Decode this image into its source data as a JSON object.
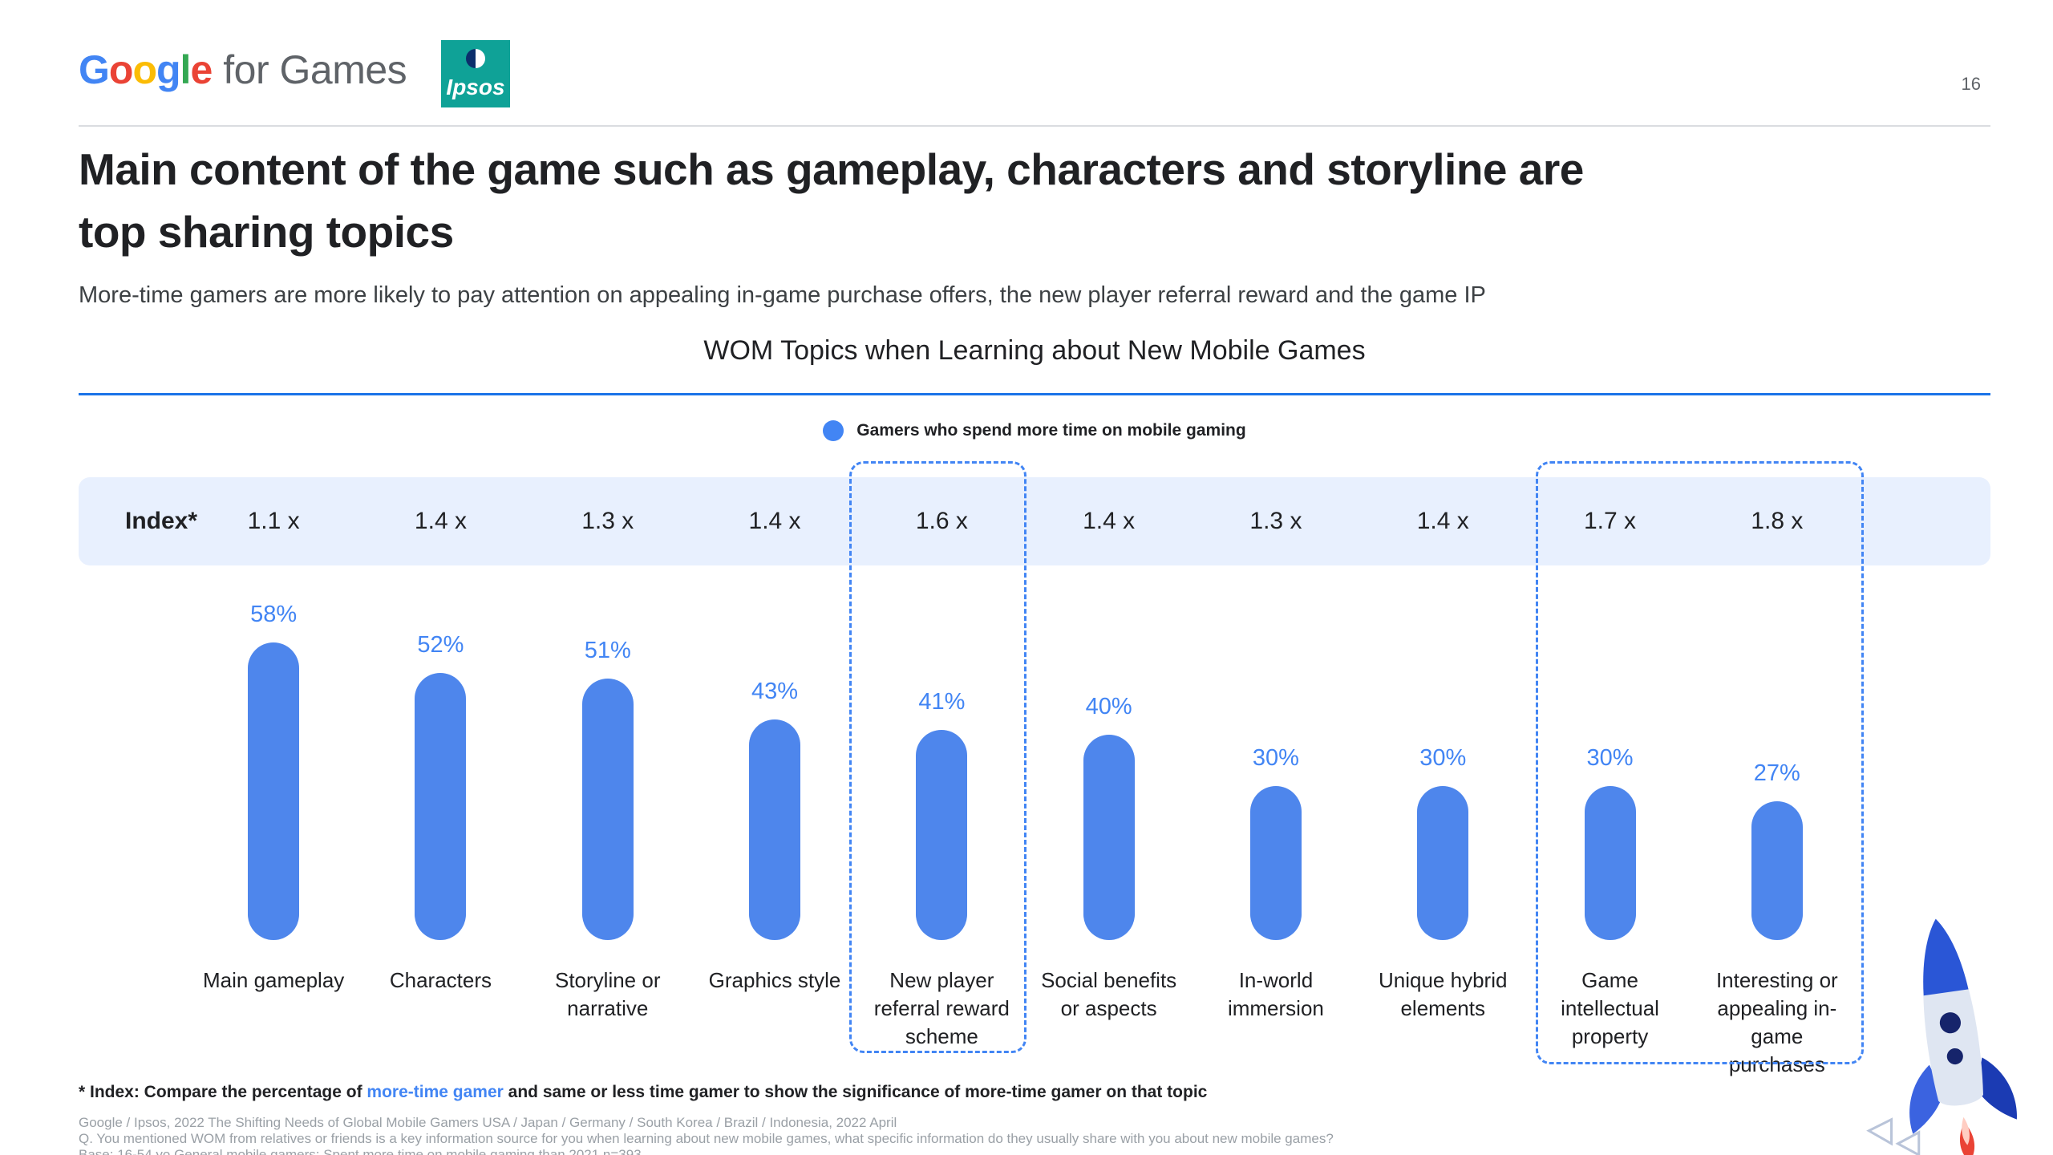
{
  "header": {
    "google_logo": {
      "letters": [
        "G",
        "o",
        "o",
        "g",
        "l",
        "e"
      ],
      "suffix": "for Games"
    },
    "ipsos_logo": "Ipsos",
    "page_number": "16"
  },
  "title": "Main content of the game such as gameplay, characters and storyline are top sharing topics",
  "subtitle": "More-time gamers are more likely to pay attention on appealing in-game purchase offers, the new player referral reward and the game IP",
  "chart_data": {
    "type": "bar",
    "title": "WOM Topics when Learning about New Mobile Games",
    "legend": [
      {
        "label": "Gamers who spend more time on mobile gaming",
        "color": "#4285f4"
      }
    ],
    "index_label": "Index*",
    "index_values": [
      "1.1 x",
      "1.4 x",
      "1.3 x",
      "1.4 x",
      "1.6 x",
      "1.4 x",
      "1.3 x",
      "1.4 x",
      "1.7 x",
      "1.8 x"
    ],
    "categories": [
      "Main gameplay",
      "Characters",
      "Storyline or narrative",
      "Graphics style",
      "New player referral reward scheme",
      "Social benefits or aspects",
      "In-world immersion",
      "Unique hybrid elements",
      "Game intellectual property",
      "Interesting or appealing in-game purchases"
    ],
    "values": [
      58,
      52,
      51,
      43,
      41,
      40,
      30,
      30,
      30,
      27
    ],
    "value_labels": [
      "58%",
      "52%",
      "51%",
      "43%",
      "41%",
      "40%",
      "30%",
      "30%",
      "30%",
      "27%"
    ],
    "ylim": [
      0,
      60
    ],
    "bar_color": "#4e86ec",
    "grid": false,
    "legend_position": "top-center",
    "highlighted_groups": [
      {
        "categories": [
          "New player referral reward scheme"
        ],
        "index_values": [
          "1.6 x"
        ]
      },
      {
        "categories": [
          "Game intellectual property",
          "Interesting or appealing in-game purchases"
        ],
        "index_values": [
          "1.7 x",
          "1.8 x"
        ]
      }
    ]
  },
  "footnote": {
    "prefix": "* Index: Compare the percentage of ",
    "link": "more-time gamer",
    "suffix": " and same or less time gamer to show the significance of more-time gamer on that topic"
  },
  "sources": [
    "Google / Ipsos, 2022 The Shifting Needs of Global Mobile Gamers USA / Japan / Germany / South Korea / Brazil / Indonesia, 2022 April",
    "Q. You mentioned WOM from relatives or friends is a key information source for you when learning about new mobile games, what specific information do they usually share with you about new mobile games?",
    "Base: 16-54 yo General mobile gamers; Spent more time on mobile gaming than 2021 n=393"
  ]
}
